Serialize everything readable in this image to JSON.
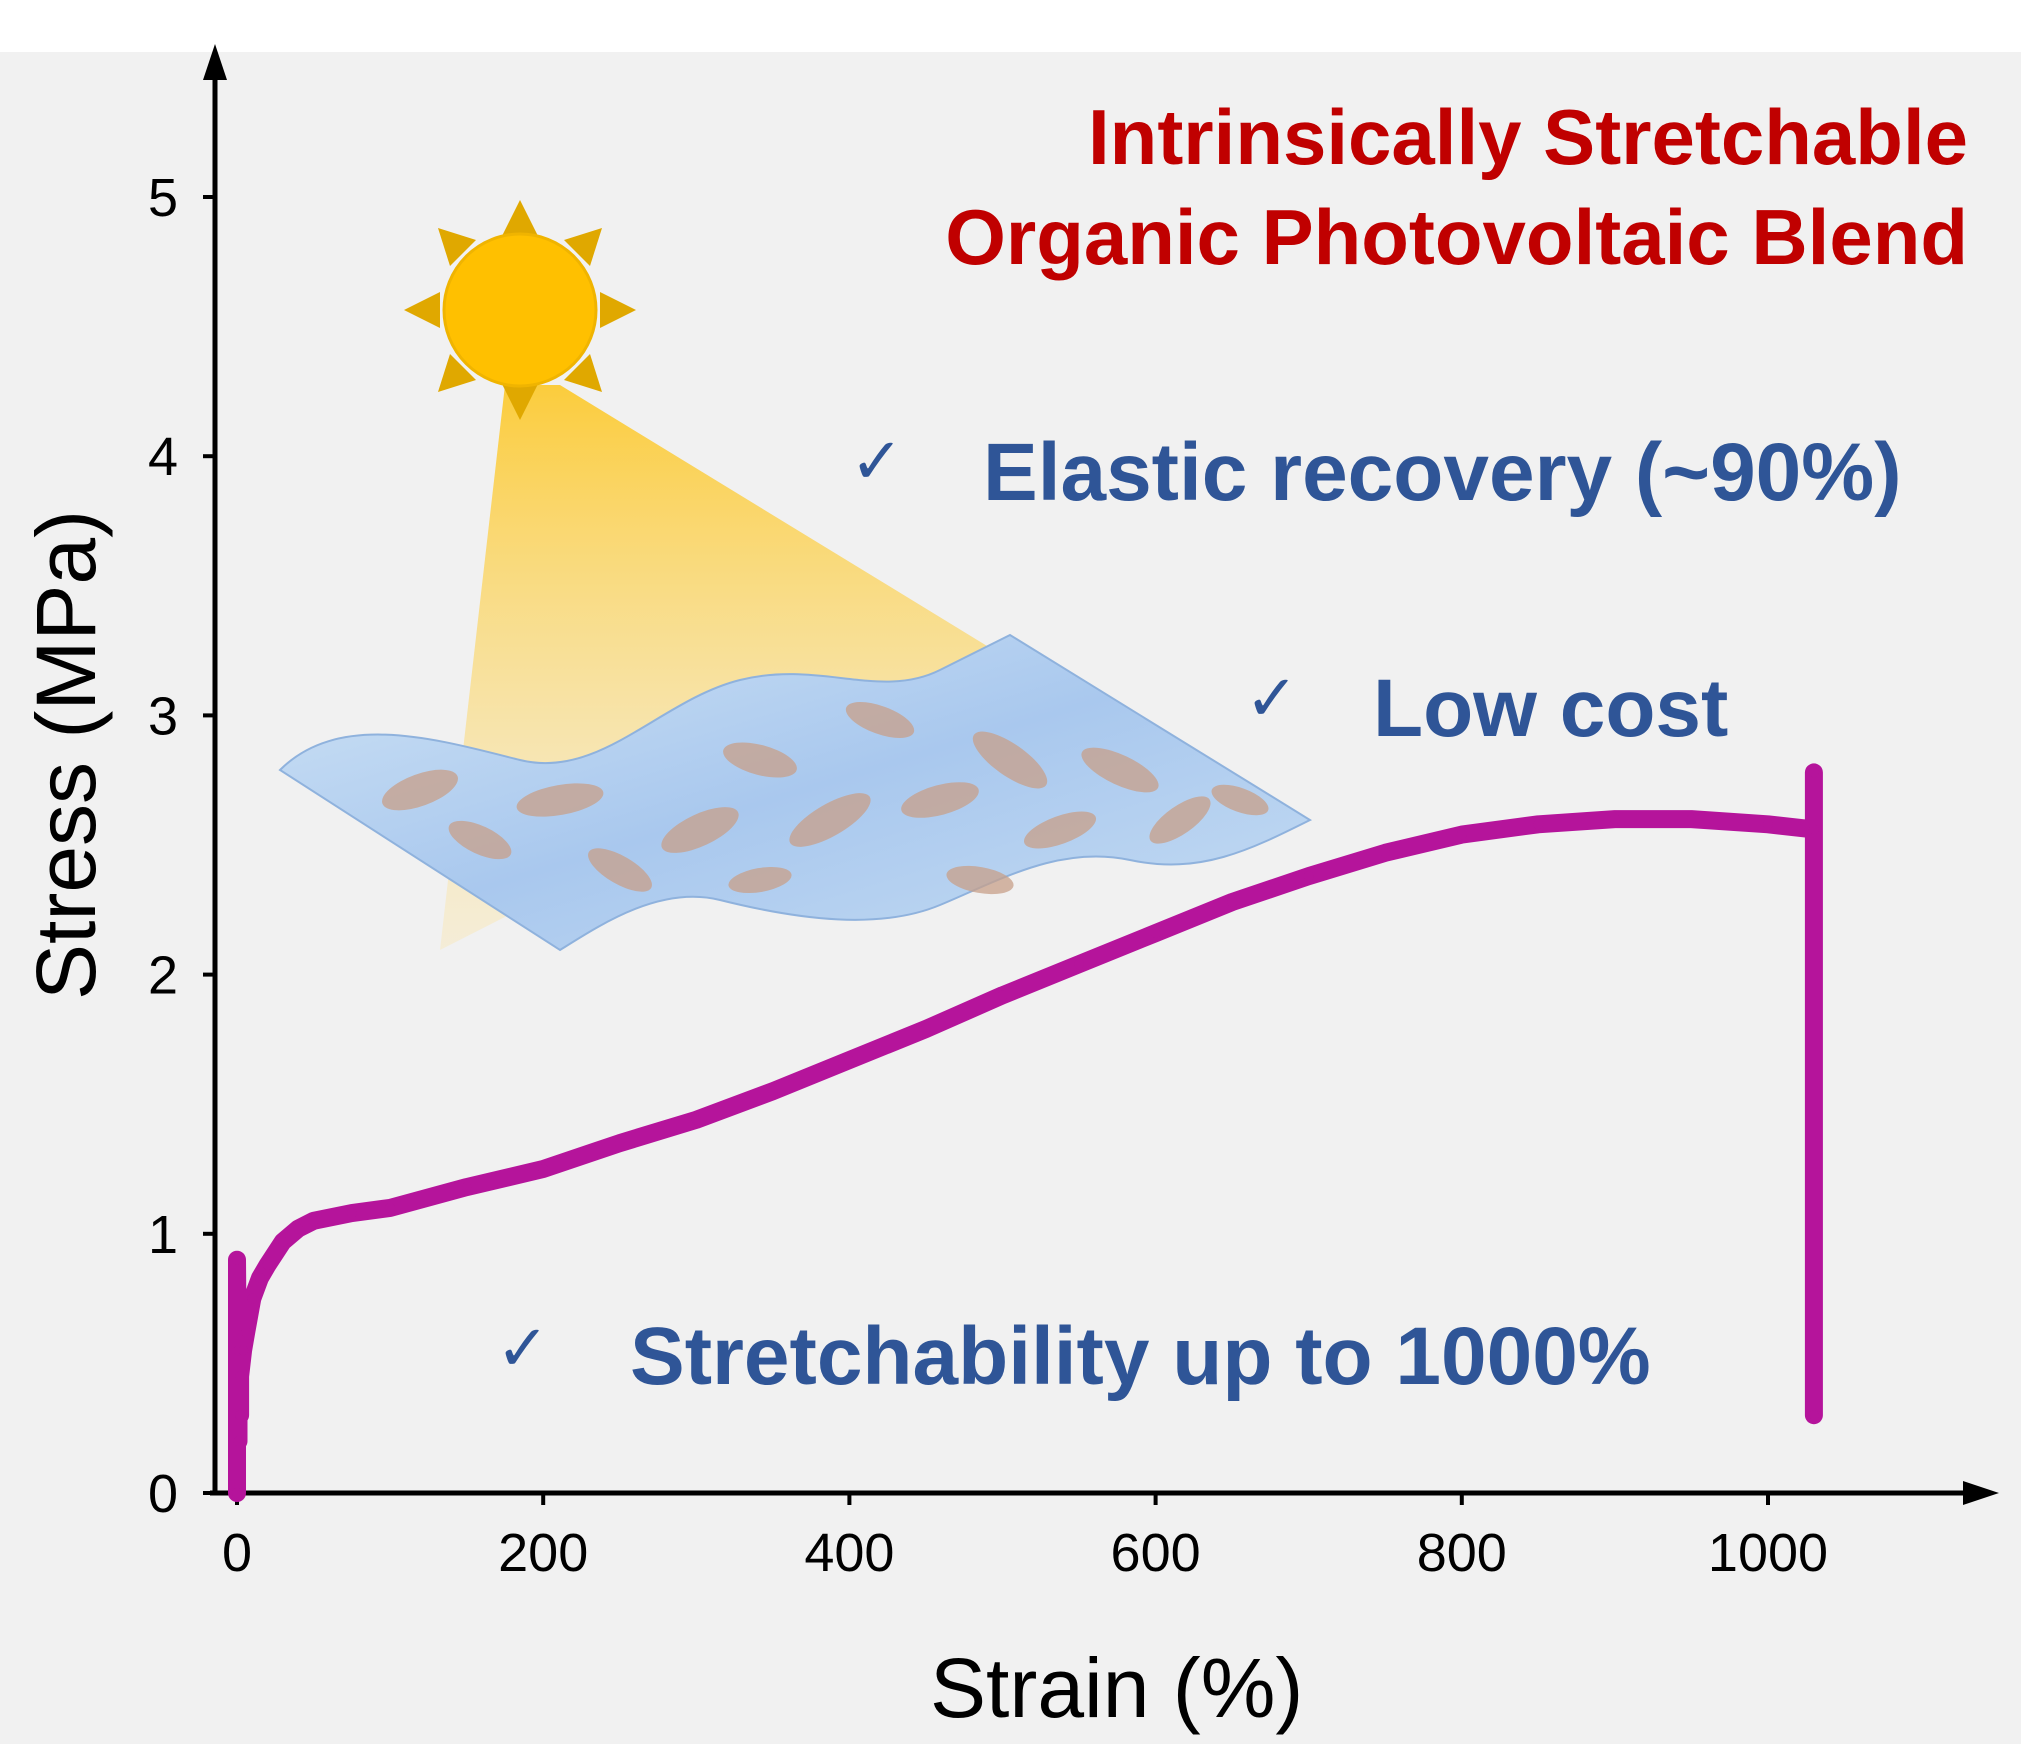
{
  "title": {
    "line1": "Intrinsically Stretchable",
    "line2": "Organic Photovoltaic Blend"
  },
  "features": [
    {
      "check": "✓",
      "label": "Elastic recovery (~90%)"
    },
    {
      "check": "✓",
      "label": "Low cost"
    },
    {
      "check": "✓",
      "label": "Stretchability up to 1000%"
    }
  ],
  "colors": {
    "title": "#c00000",
    "feature_text": "#2f5597",
    "curve": "#b5149b",
    "sun": "#ffc000",
    "panel_background": "#f1f1f1"
  },
  "illustration": {
    "sun": "sun-icon",
    "light_beam": "light-beam",
    "film": "wavy-stretchable-film"
  },
  "chart_data": {
    "type": "line",
    "xlabel": "Strain (%)",
    "ylabel": "Stress (MPa)",
    "xlim": [
      0,
      1150
    ],
    "ylim": [
      0,
      5.4
    ],
    "x_ticks": [
      0,
      200,
      400,
      600,
      800,
      1000
    ],
    "y_ticks": [
      0,
      1,
      2,
      3,
      4,
      5
    ],
    "grid": false,
    "legend": "none",
    "series": [
      {
        "x": [
          0,
          0,
          1,
          1,
          2,
          2,
          4,
          6,
          10,
          15,
          20,
          30,
          40,
          50,
          75,
          100,
          150,
          200,
          250,
          300,
          350,
          400,
          450,
          500,
          550,
          600,
          650,
          700,
          750,
          800,
          850,
          900,
          950,
          1000,
          1030,
          1030,
          1030
        ],
        "y": [
          0,
          0.9,
          0.2,
          0.55,
          0.3,
          0.45,
          0.55,
          0.62,
          0.75,
          0.83,
          0.88,
          0.97,
          1.02,
          1.05,
          1.08,
          1.1,
          1.18,
          1.25,
          1.35,
          1.44,
          1.55,
          1.67,
          1.79,
          1.92,
          2.04,
          2.16,
          2.28,
          2.38,
          2.47,
          2.54,
          2.58,
          2.6,
          2.6,
          2.58,
          2.56,
          2.78,
          0.3
        ]
      }
    ]
  }
}
